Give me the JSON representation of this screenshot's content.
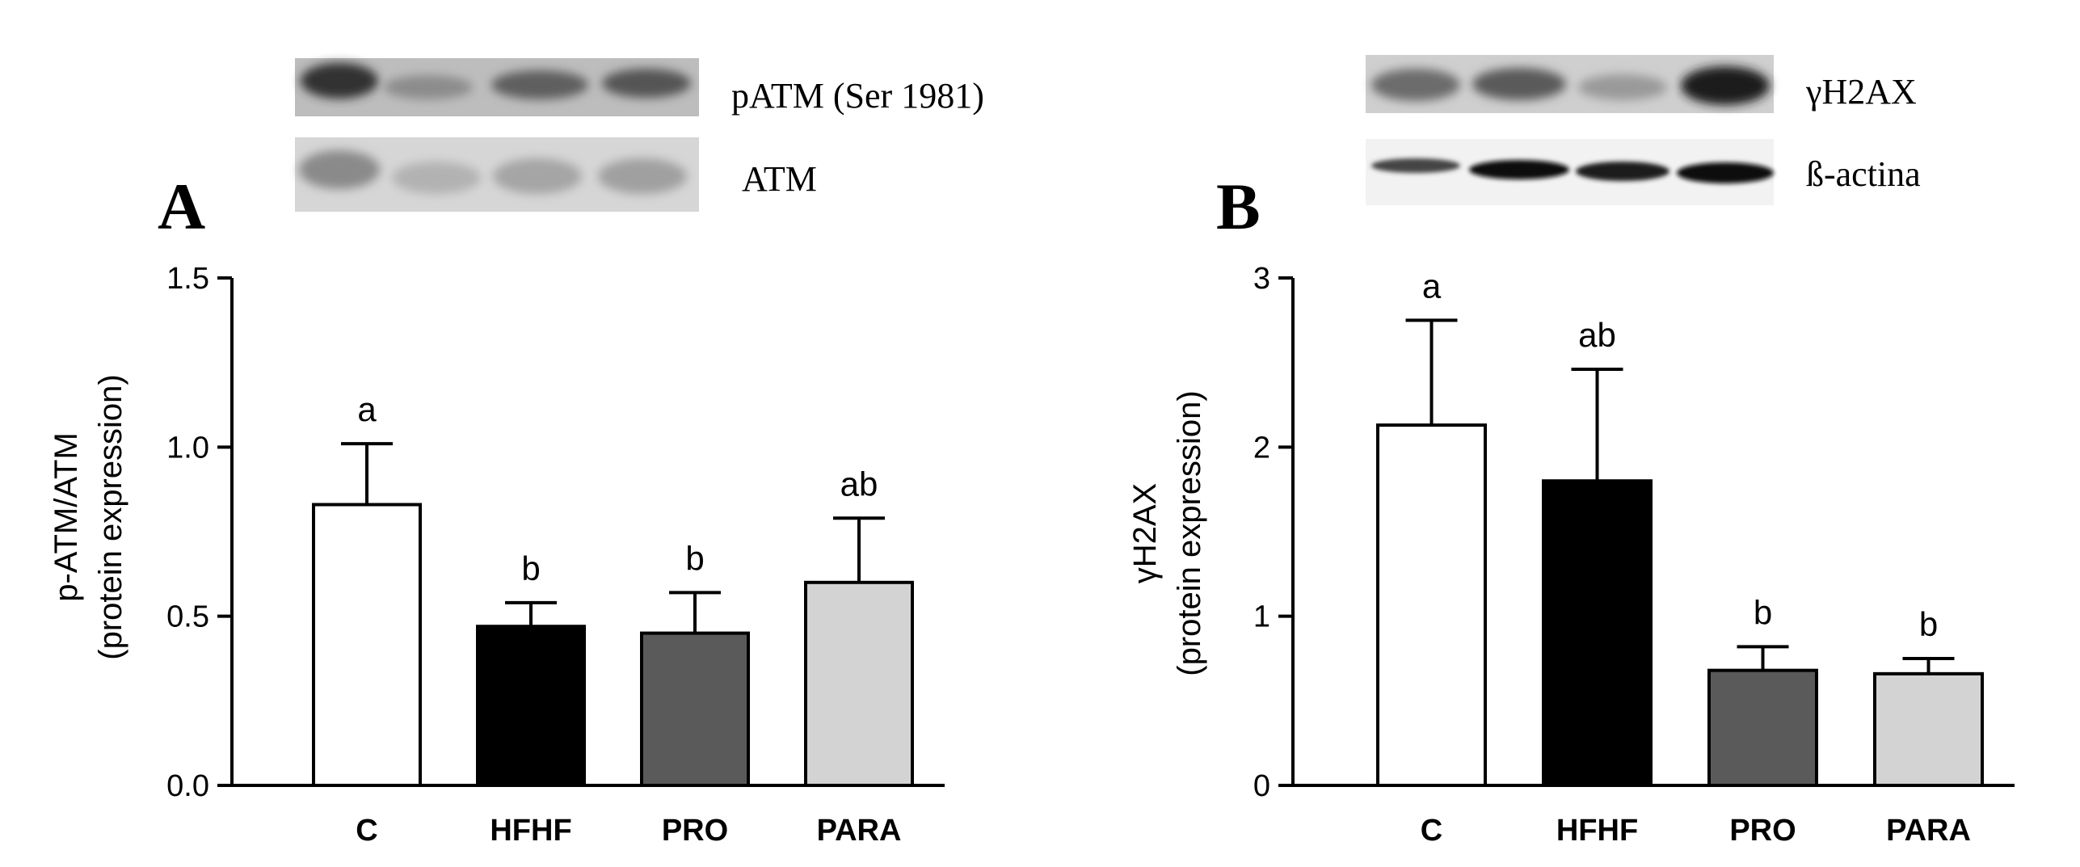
{
  "panels": [
    {
      "letter": "A",
      "blot_labels": [
        "pATM (Ser 1981)",
        "ATM"
      ],
      "chart_data": {
        "type": "bar",
        "categories": [
          "C",
          "HFHF",
          "PRO",
          "PARA"
        ],
        "values": [
          0.83,
          0.47,
          0.45,
          0.6
        ],
        "errors": [
          0.18,
          0.07,
          0.12,
          0.19
        ],
        "significance": [
          "a",
          "b",
          "b",
          "ab"
        ],
        "bar_colors": [
          "#ffffff",
          "#000000",
          "#5a5a5a",
          "#d3d3d3"
        ],
        "title": "",
        "xlabel": "",
        "ylabel_line1": "p-ATM/ATM",
        "ylabel_line2": "(protein expression)",
        "ylim": [
          0,
          1.5
        ],
        "yticks": [
          "0.0",
          "0.5",
          "1.0",
          "1.5"
        ],
        "grid": false
      }
    },
    {
      "letter": "B",
      "blot_labels": [
        "γH2AX",
        "ß-actina"
      ],
      "chart_data": {
        "type": "bar",
        "categories": [
          "C",
          "HFHF",
          "PRO",
          "PARA"
        ],
        "values": [
          2.13,
          1.8,
          0.68,
          0.66
        ],
        "errors": [
          0.62,
          0.66,
          0.14,
          0.09
        ],
        "significance": [
          "a",
          "ab",
          "b",
          "b"
        ],
        "bar_colors": [
          "#ffffff",
          "#000000",
          "#5a5a5a",
          "#d3d3d3"
        ],
        "title": "",
        "xlabel": "",
        "ylabel_line1": "γH2AX",
        "ylabel_line2": "(protein expression)",
        "ylim": [
          0,
          3
        ],
        "yticks": [
          "0",
          "1",
          "2",
          "3"
        ],
        "grid": false
      }
    }
  ]
}
